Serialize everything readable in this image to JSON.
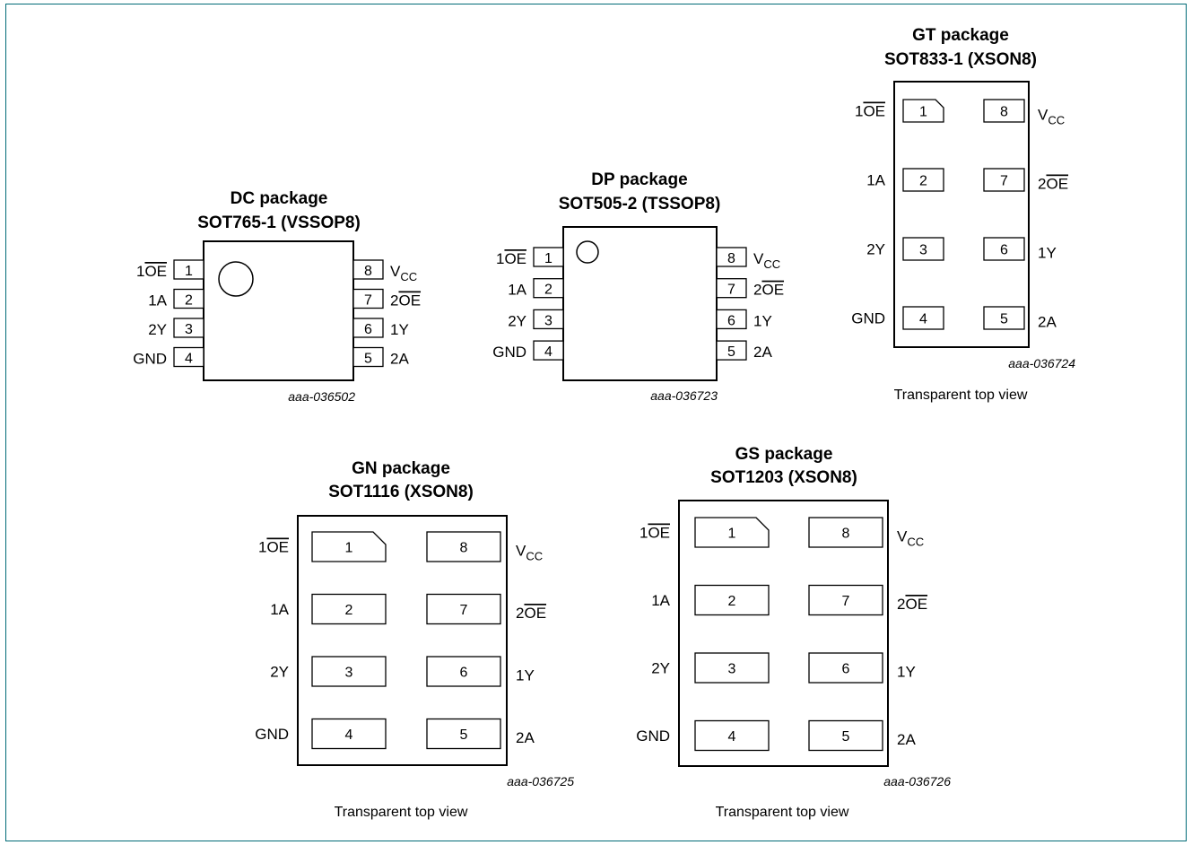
{
  "packages": [
    {
      "id": "dc",
      "name": "DC package",
      "code": "SOT765-1 (VSSOP8)",
      "drawing": "aaa-036502",
      "view_note": "",
      "pins": [
        {
          "num": "1",
          "label": "1",
          "over": "OE"
        },
        {
          "num": "2",
          "label": "1A",
          "over": ""
        },
        {
          "num": "3",
          "label": "2Y",
          "over": ""
        },
        {
          "num": "4",
          "label": "GND",
          "over": ""
        },
        {
          "num": "5",
          "label": "2A",
          "over": ""
        },
        {
          "num": "6",
          "label": "1Y",
          "over": ""
        },
        {
          "num": "7",
          "label": "2",
          "over": "OE"
        },
        {
          "num": "8",
          "label": "V",
          "over": "",
          "sub": "CC"
        }
      ]
    },
    {
      "id": "dp",
      "name": "DP package",
      "code": "SOT505-2 (TSSOP8)",
      "drawing": "aaa-036723",
      "view_note": "",
      "pins": [
        {
          "num": "1",
          "label": "1",
          "over": "OE"
        },
        {
          "num": "2",
          "label": "1A",
          "over": ""
        },
        {
          "num": "3",
          "label": "2Y",
          "over": ""
        },
        {
          "num": "4",
          "label": "GND",
          "over": ""
        },
        {
          "num": "5",
          "label": "2A",
          "over": ""
        },
        {
          "num": "6",
          "label": "1Y",
          "over": ""
        },
        {
          "num": "7",
          "label": "2",
          "over": "OE"
        },
        {
          "num": "8",
          "label": "V",
          "over": "",
          "sub": "CC"
        }
      ]
    },
    {
      "id": "gt",
      "name": "GT package",
      "code": "SOT833-1 (XSON8)",
      "drawing": "aaa-036724",
      "view_note": "Transparent top view",
      "pins": [
        {
          "num": "1",
          "label": "1",
          "over": "OE"
        },
        {
          "num": "2",
          "label": "1A",
          "over": ""
        },
        {
          "num": "3",
          "label": "2Y",
          "over": ""
        },
        {
          "num": "4",
          "label": "GND",
          "over": ""
        },
        {
          "num": "5",
          "label": "2A",
          "over": ""
        },
        {
          "num": "6",
          "label": "1Y",
          "over": ""
        },
        {
          "num": "7",
          "label": "2",
          "over": "OE"
        },
        {
          "num": "8",
          "label": "V",
          "over": "",
          "sub": "CC"
        }
      ]
    },
    {
      "id": "gn",
      "name": "GN package",
      "code": "SOT1116 (XSON8)",
      "drawing": "aaa-036725",
      "view_note": "Transparent top view",
      "pins": [
        {
          "num": "1",
          "label": "1",
          "over": "OE"
        },
        {
          "num": "2",
          "label": "1A",
          "over": ""
        },
        {
          "num": "3",
          "label": "2Y",
          "over": ""
        },
        {
          "num": "4",
          "label": "GND",
          "over": ""
        },
        {
          "num": "5",
          "label": "2A",
          "over": ""
        },
        {
          "num": "6",
          "label": "1Y",
          "over": ""
        },
        {
          "num": "7",
          "label": "2",
          "over": "OE"
        },
        {
          "num": "8",
          "label": "V",
          "over": "",
          "sub": "CC"
        }
      ]
    },
    {
      "id": "gs",
      "name": "GS package",
      "code": "SOT1203 (XSON8)",
      "drawing": "aaa-036726",
      "view_note": "Transparent top view",
      "pins": [
        {
          "num": "1",
          "label": "1",
          "over": "OE"
        },
        {
          "num": "2",
          "label": "1A",
          "over": ""
        },
        {
          "num": "3",
          "label": "2Y",
          "over": ""
        },
        {
          "num": "4",
          "label": "GND",
          "over": ""
        },
        {
          "num": "5",
          "label": "2A",
          "over": ""
        },
        {
          "num": "6",
          "label": "1Y",
          "over": ""
        },
        {
          "num": "7",
          "label": "2",
          "over": "OE"
        },
        {
          "num": "8",
          "label": "V",
          "over": "",
          "sub": "CC"
        }
      ]
    }
  ],
  "colors": {
    "frame": "#006b77",
    "ink": "#000000"
  }
}
